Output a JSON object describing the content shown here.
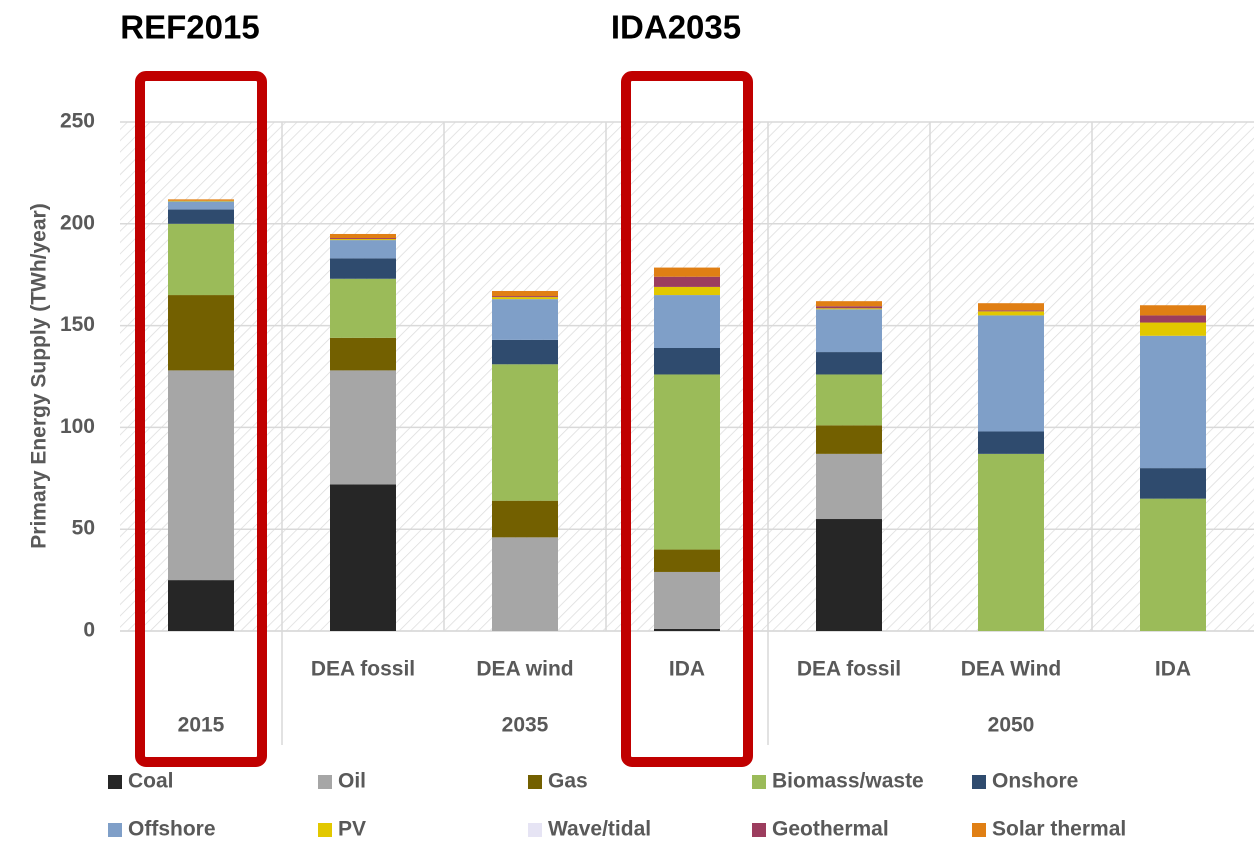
{
  "chart_data": {
    "type": "stacked-bar",
    "annotations": [
      "REF2015",
      "IDA2035"
    ],
    "y_label": "Primary Energy Supply (TWh/year)",
    "groups": [
      {
        "label": "2015",
        "categories": [
          null
        ]
      },
      {
        "label": "2035",
        "categories": [
          "DEA fossil",
          "DEA wind",
          "IDA"
        ]
      },
      {
        "label": "2050",
        "categories": [
          "DEA fossil",
          "DEA Wind",
          "IDA"
        ]
      }
    ],
    "highlighted": [
      "REF2015",
      "IDA2035"
    ],
    "series": [
      {
        "name": "Coal",
        "color": "#262626",
        "values": [
          25,
          72,
          0,
          1,
          55,
          0,
          0
        ]
      },
      {
        "name": "Oil",
        "color": "#a6a6a6",
        "values": [
          103,
          56,
          46,
          28,
          32,
          0,
          0
        ]
      },
      {
        "name": "Gas",
        "color": "#736000",
        "values": [
          37,
          16,
          18,
          11,
          14,
          0,
          0
        ]
      },
      {
        "name": "Biomass/waste",
        "color": "#9bbb59",
        "values": [
          35,
          29,
          67,
          86,
          25,
          87,
          65
        ]
      },
      {
        "name": "Onshore",
        "color": "#2f4b6e",
        "values": [
          7,
          10,
          12,
          13,
          11,
          11,
          15
        ]
      },
      {
        "name": "Offshore",
        "color": "#7f9fc8",
        "values": [
          4,
          9,
          20,
          26,
          21,
          57,
          65
        ]
      },
      {
        "name": "PV",
        "color": "#e2c800",
        "values": [
          0.3,
          0.5,
          1,
          4,
          0.5,
          2,
          6.5
        ]
      },
      {
        "name": "Wave/tidal",
        "color": "#e6e4f4",
        "values": [
          0,
          0,
          0,
          0,
          0,
          0,
          0
        ]
      },
      {
        "name": "Geothermal",
        "color": "#9c3d5e",
        "values": [
          0,
          0.5,
          0.5,
          5,
          1,
          0.5,
          3.5
        ]
      },
      {
        "name": "Solar thermal",
        "color": "#e07f14",
        "values": [
          0.7,
          2,
          2.5,
          4.5,
          2.5,
          3.5,
          5
        ]
      }
    ],
    "ylim": [
      0,
      250
    ],
    "yticks": [
      0,
      50,
      100,
      150,
      200,
      250
    ],
    "grid": true
  }
}
